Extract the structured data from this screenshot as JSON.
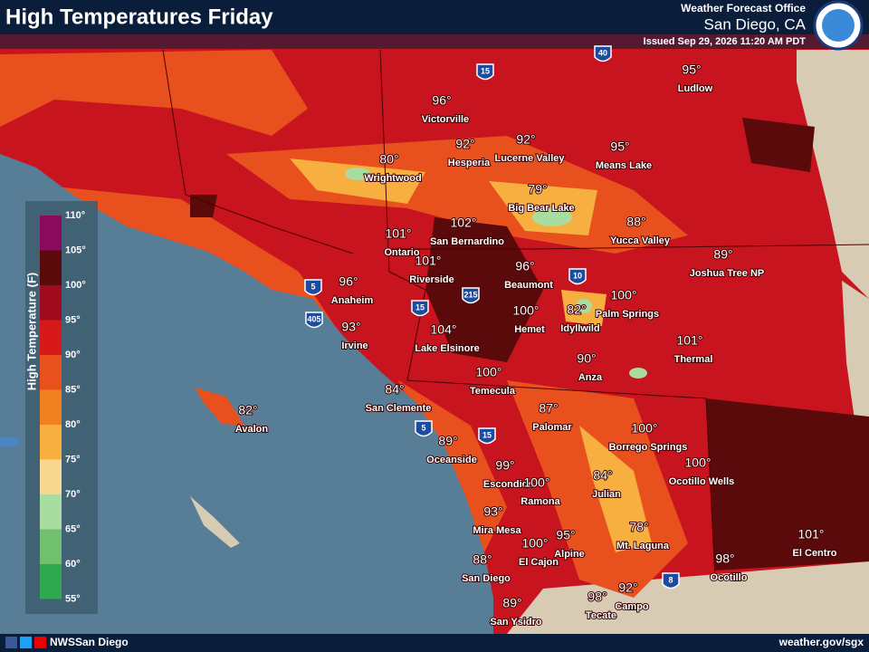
{
  "header": {
    "title": "High Temperatures Friday",
    "office": "Weather Forecast Office",
    "location": "San Diego, CA",
    "issued": "Issued Sep 29, 2026 11:20 AM PDT"
  },
  "legend": {
    "title": "High Temperature (F)",
    "labels": [
      "110°",
      "105°",
      "100°",
      "95°",
      "90°",
      "85°",
      "80°",
      "75°",
      "70°",
      "65°",
      "60°",
      "55°"
    ]
  },
  "highways": [
    "15",
    "40",
    "10",
    "5",
    "405",
    "15",
    "215",
    "5",
    "15",
    "8"
  ],
  "cities": [
    {
      "temp": "96°",
      "name": "Victorville"
    },
    {
      "temp": "95°",
      "name": "Ludlow"
    },
    {
      "temp": "92°",
      "name": "Hesperia"
    },
    {
      "temp": "92°",
      "name": "Lucerne Valley"
    },
    {
      "temp": "95°",
      "name": "Means Lake"
    },
    {
      "temp": "80°",
      "name": "Wrightwood"
    },
    {
      "temp": "79°",
      "name": "Big Bear Lake"
    },
    {
      "temp": "88°",
      "name": "Yucca Valley"
    },
    {
      "temp": "89°",
      "name": "Joshua Tree NP"
    },
    {
      "temp": "101°",
      "name": "Ontario"
    },
    {
      "temp": "102°",
      "name": "San Bernardino"
    },
    {
      "temp": "101°",
      "name": "Riverside"
    },
    {
      "temp": "96°",
      "name": "Beaumont"
    },
    {
      "temp": "96°",
      "name": "Anaheim"
    },
    {
      "temp": "100°",
      "name": "Palm Springs"
    },
    {
      "temp": "100°",
      "name": "Hemet"
    },
    {
      "temp": "82°",
      "name": "Idyllwild"
    },
    {
      "temp": "93°",
      "name": "Irvine"
    },
    {
      "temp": "104°",
      "name": "Lake Elsinore"
    },
    {
      "temp": "101°",
      "name": "Thermal"
    },
    {
      "temp": "90°",
      "name": "Anza"
    },
    {
      "temp": "100°",
      "name": "Temecula"
    },
    {
      "temp": "84°",
      "name": "San Clemente"
    },
    {
      "temp": "82°",
      "name": "Avalon"
    },
    {
      "temp": "87°",
      "name": "Palomar"
    },
    {
      "temp": "100°",
      "name": "Borrego Springs"
    },
    {
      "temp": "89°",
      "name": "Oceanside"
    },
    {
      "temp": "99°",
      "name": "Escondido"
    },
    {
      "temp": "100°",
      "name": "Ocotillo Wells"
    },
    {
      "temp": "84°",
      "name": "Julian"
    },
    {
      "temp": "100°",
      "name": "Ramona"
    },
    {
      "temp": "93°",
      "name": "Mira Mesa"
    },
    {
      "temp": "78°",
      "name": "Mt. Laguna"
    },
    {
      "temp": "95°",
      "name": "Alpine"
    },
    {
      "temp": "101°",
      "name": "El Centro"
    },
    {
      "temp": "100°",
      "name": "El Cajon"
    },
    {
      "temp": "88°",
      "name": "San Diego"
    },
    {
      "temp": "98°",
      "name": "Ocotillo"
    },
    {
      "temp": "92°",
      "name": "Campo"
    },
    {
      "temp": "98°",
      "name": "Tecate"
    },
    {
      "temp": "89°",
      "name": "San Ysidro"
    }
  ],
  "footer": {
    "account": "NWSSan Diego",
    "url": "weather.gov/sgx"
  }
}
